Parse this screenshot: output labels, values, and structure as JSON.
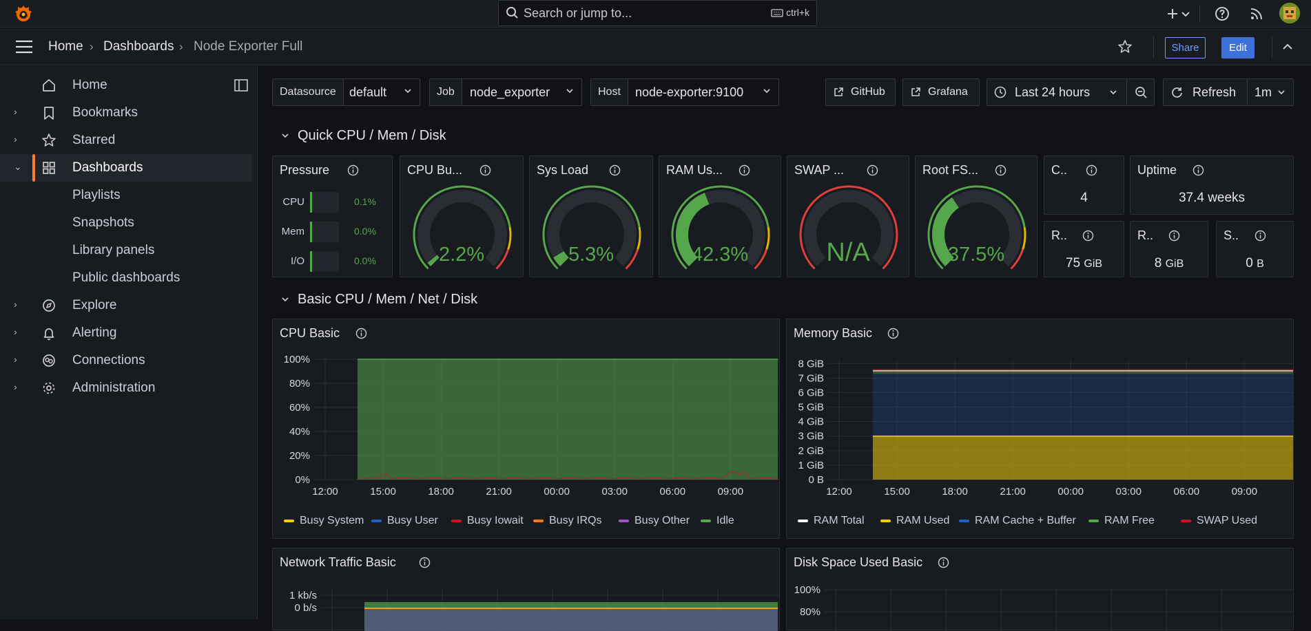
{
  "topbar": {
    "search_placeholder": "Search or jump to...",
    "search_shortcut": "ctrl+k",
    "icons": [
      "grafana-logo",
      "search-icon",
      "keyboard-icon",
      "plus-icon",
      "chevron-down-icon",
      "help-icon",
      "rss-icon",
      "user-avatar"
    ]
  },
  "breadcrumb": {
    "items": [
      "Home",
      "Dashboards",
      "Node Exporter Full"
    ],
    "share_label": "Share",
    "edit_label": "Edit"
  },
  "sidebar": {
    "items": [
      {
        "label": "Home",
        "icon": "home-icon"
      },
      {
        "label": "Bookmarks",
        "icon": "bookmark-icon"
      },
      {
        "label": "Starred",
        "icon": "star-icon"
      },
      {
        "label": "Dashboards",
        "icon": "apps-icon",
        "active": true
      },
      {
        "label": "Explore",
        "icon": "compass-icon"
      },
      {
        "label": "Alerting",
        "icon": "bell-icon"
      },
      {
        "label": "Connections",
        "icon": "connections-icon"
      },
      {
        "label": "Administration",
        "icon": "cog-icon"
      }
    ],
    "subitems": [
      "Playlists",
      "Snapshots",
      "Library panels",
      "Public dashboards"
    ]
  },
  "variables": [
    {
      "label": "Datasource",
      "value": "default"
    },
    {
      "label": "Job",
      "value": "node_exporter"
    },
    {
      "label": "Host",
      "value": "node-exporter:9100"
    }
  ],
  "toolbar": {
    "github_label": "GitHub",
    "grafana_label": "Grafana",
    "time_range": "Last 24 hours",
    "refresh_label": "Refresh",
    "refresh_interval": "1m"
  },
  "rows": {
    "quick": "Quick CPU / Mem / Disk",
    "basic": "Basic CPU / Mem / Net / Disk"
  },
  "pressure": {
    "title": "Pressure",
    "items": [
      {
        "label": "CPU",
        "value": "0.1%"
      },
      {
        "label": "Mem",
        "value": "0.0%"
      },
      {
        "label": "I/O",
        "value": "0.0%"
      }
    ]
  },
  "gauges": [
    {
      "title": "CPU Bu...",
      "value": "2.2%",
      "fraction": 0.022
    },
    {
      "title": "Sys Load",
      "value": "5.3%",
      "fraction": 0.053
    },
    {
      "title": "RAM Us...",
      "value": "42.3%",
      "fraction": 0.423
    },
    {
      "title": "SWAP ...",
      "value": "N/A",
      "fraction": 0
    },
    {
      "title": "Root FS...",
      "value": "37.5%",
      "fraction": 0.375
    }
  ],
  "stats": {
    "cores": {
      "title": "C..",
      "value": "4"
    },
    "uptime": {
      "title": "Uptime",
      "value": "37.4 weeks"
    },
    "rootfs_total": {
      "title": "R..",
      "value": "75",
      "unit": "GiB"
    },
    "ram_total": {
      "title": "R..",
      "value": "8",
      "unit": "GiB"
    },
    "swap_total": {
      "title": "S..",
      "value": "0",
      "unit": "B"
    }
  },
  "panels": {
    "cpu_basic": "CPU Basic",
    "memory_basic": "Memory Basic",
    "network_basic": "Network Traffic Basic",
    "disk_basic": "Disk Space Used Basic"
  },
  "colors": {
    "green": "#56a64b",
    "yellow": "#f2cc0c",
    "blue": "#1f60c4",
    "red": "#c4162a",
    "orange": "#ff780a",
    "purple": "#a352cc",
    "accent": "#ff7a30"
  },
  "chart_data": [
    {
      "type": "area",
      "title": "CPU Basic",
      "x": [
        "12:00",
        "15:00",
        "18:00",
        "21:00",
        "00:00",
        "03:00",
        "06:00",
        "09:00"
      ],
      "yticks": [
        "0%",
        "20%",
        "40%",
        "60%",
        "80%",
        "100%"
      ],
      "ylim": [
        0,
        100
      ],
      "series": [
        {
          "name": "Busy System",
          "color": "#f2cc0c"
        },
        {
          "name": "Busy User",
          "color": "#1f60c4"
        },
        {
          "name": "Busy Iowait",
          "color": "#c4162a"
        },
        {
          "name": "Busy IRQs",
          "color": "#ff780a"
        },
        {
          "name": "Busy Other",
          "color": "#a352cc"
        },
        {
          "name": "Idle",
          "color": "#56a64b",
          "value_approx": 98
        }
      ]
    },
    {
      "type": "area",
      "title": "Memory Basic",
      "x": [
        "12:00",
        "15:00",
        "18:00",
        "21:00",
        "00:00",
        "03:00",
        "06:00",
        "09:00"
      ],
      "yticks": [
        "0 B",
        "1 GiB",
        "2 GiB",
        "3 GiB",
        "4 GiB",
        "5 GiB",
        "6 GiB",
        "7 GiB",
        "8 GiB"
      ],
      "ylim": [
        0,
        8.3
      ],
      "series": [
        {
          "name": "RAM Total",
          "color": "#ffffff",
          "value_approx": 7.5
        },
        {
          "name": "RAM Used",
          "color": "#f2cc0c",
          "value_approx": 3.0
        },
        {
          "name": "RAM Cache + Buffer",
          "color": "#1f60c4",
          "value_approx": 4.3
        },
        {
          "name": "RAM Free",
          "color": "#56a64b",
          "value_approx": 0.2
        },
        {
          "name": "SWAP Used",
          "color": "#c4162a",
          "value_approx": 0
        }
      ]
    },
    {
      "type": "area",
      "title": "Network Traffic Basic",
      "yticks": [
        "1 kb/s",
        "0 b/s"
      ]
    },
    {
      "type": "area",
      "title": "Disk Space Used Basic",
      "yticks": [
        "100%",
        "80%"
      ]
    }
  ]
}
